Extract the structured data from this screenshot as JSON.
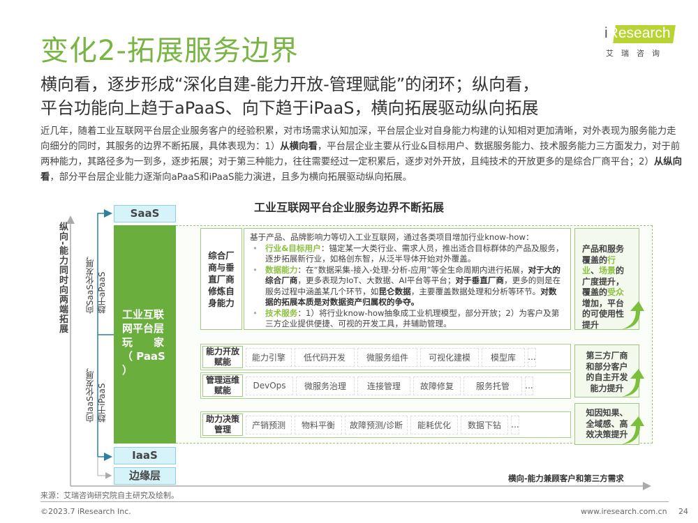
{
  "header": {
    "title": "变化2-拓展服务边界",
    "logo_text": "iResearch",
    "logo_cn": "艾瑞咨询",
    "subtitle_line1": "横向看，逐步形成“深化自建-能力开放-管理赋能”的闭环；纵向看，",
    "subtitle_line2": "平台功能向上趋于aPaaS、向下趋于iPaaS，横向拓展驱动纵向拓展"
  },
  "paragraph": {
    "p1": "近几年，随着工业互联网平台层企业服务客户的经验积累，对市场需求认知加深，平台层企业对自身能力构建的认知相对更加清晰，对外表现为服务能力走向细分的同时，其服务的边界不断拓展，具体表现为：1）",
    "b1": "从横向看",
    "p2": "，平台层企业主要从行业&目标用户、数据服务能力、技术服务能力三方面发力，对于前两种能力，其路径多为一到多，逐步拓展；对于第三种能力，往往需要经过一定积累后，逐步对外开放，且纯技术的开放更多的是综合厂商平台；2）",
    "b2": "从纵向看",
    "p3": "，部分平台层企业能力逐渐向aPaaS和iPaaS能力演进，且多为横向拓展驱动纵向拓展。"
  },
  "diagram": {
    "title": "工业互联网平台企业服务边界不断拓展",
    "y_axis_label": "纵向-能力同时向两端拓展",
    "x_axis_label": "横向-能力兼顾客户和第三方需求",
    "up_label_1": "向SaaS化发展，",
    "up_label_2": "趋于aPaaS",
    "down_label_1": "向IaaS化发展，",
    "down_label_2": "趋于iPaaS",
    "saas": "SaaS",
    "iaas": "IaaS",
    "edge": "边缘层",
    "paas_l1": "工业互联",
    "paas_l2": "网平台层",
    "paas_l3": "玩　　家",
    "paas_l4": "（ PaaS ）",
    "self_label": "综合厂商与垂直厂商修炼自身能力",
    "desc": {
      "intro": "基于产品、品牌影响力等切入工业互联网，通过各类项目增加行业know-how：",
      "b1_head": "行业&目标用户",
      "b1_text": "：锚定某一大类行业、需求人员，推出适合目标群体的产品及服务，逐步拓展新行业，如格创东智，从泛半导体开始对外覆盖。",
      "b2_head": "数据能力",
      "b2_t1": "：在“数据采集-接入-处理-分析-应用”等全生命周期内进行拓展，",
      "b2_b1": "对于大的综合厂商",
      "b2_t2": "，更多表现为IoT、大数据、AI平台等平台；",
      "b2_b2": "对于垂直厂商",
      "b2_t3": "，更多的则是在服务过程中涵盖某几个环节，如",
      "b2_b3": "昆仑数据",
      "b2_t4": "，主要覆盖数据处理和分析等环节。",
      "b2_b4": "对数据的拓展本质是对数据资产归属权的争夺。",
      "b3_head": "技术服务",
      "b3_text": "：1）将行业know-how抽象成工业机理模型，部分开放；2）为客户及第三方企业提供便捷、可视的开发工具，并辅助管理。"
    },
    "rows": [
      {
        "label": "能力开放赋能",
        "items": [
          "能力引擎",
          "低代码开发",
          "微服务组件",
          "可视化建模",
          "模型库",
          "..."
        ]
      },
      {
        "label": "管理运维赋能",
        "items": [
          "DevOps",
          "微服务治理",
          "连接管理",
          "故障修复",
          "服务托管",
          "..."
        ]
      },
      {
        "label": "助力决策管理",
        "items": [
          "产销预测",
          "物料平衡",
          "故障预测/诊断",
          "能耗优化",
          "数据下钻",
          "..."
        ]
      }
    ],
    "right1": {
      "t1": "产品和服务覆盖的",
      "g1": "行业",
      "t2": "、",
      "g2": "场景",
      "t3": "的广度提升，覆盖的",
      "g3": "受众",
      "t4": "增加，平台的可使用性提升"
    },
    "right2": "第三方厂商和部分客户的自主开发能力提升",
    "right3": "知因知果、全域感、高效决策提升"
  },
  "footer": {
    "source": "来源：艾瑞咨询研究院自主研究及绘制。",
    "copyright": "©2023.7 iResearch Inc.",
    "url": "www.iresearch.com.cn",
    "page": "24"
  },
  "colors": {
    "accent_green": "#78b544",
    "box_green": "#6aaf3e",
    "cyan": "#d6f3fa",
    "arrow_blue": "#2f7fa0"
  }
}
